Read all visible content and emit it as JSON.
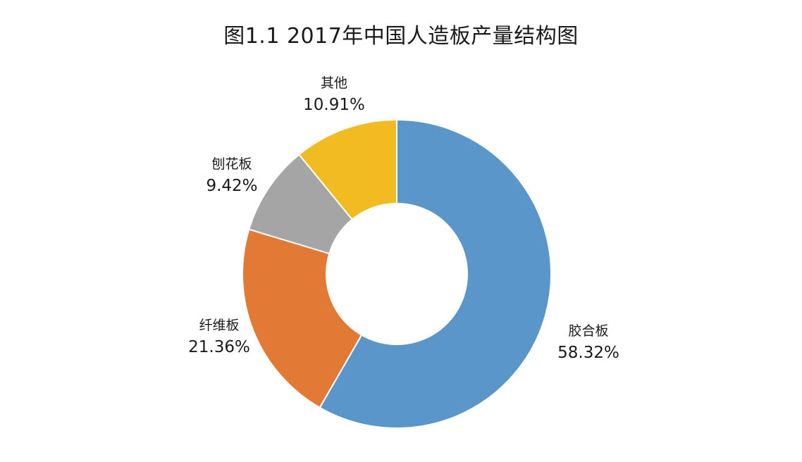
{
  "chart_data": {
    "type": "pie",
    "variant": "donut",
    "title": "图1.1 2017年中国人造板产量结构图",
    "categories": [
      "胶合板",
      "纤维板",
      "刨花板",
      "其他"
    ],
    "values": [
      58.32,
      21.36,
      9.42,
      10.91
    ],
    "value_labels": [
      "58.32%",
      "21.36%",
      "9.42%",
      "10.91%"
    ],
    "unit": "%",
    "start_direction": "top",
    "order": "clockwise",
    "colors": [
      "#5B96CB",
      "#E27A35",
      "#A5A5A5",
      "#F3BB22"
    ],
    "legend": "none",
    "data_labels": "outside"
  }
}
